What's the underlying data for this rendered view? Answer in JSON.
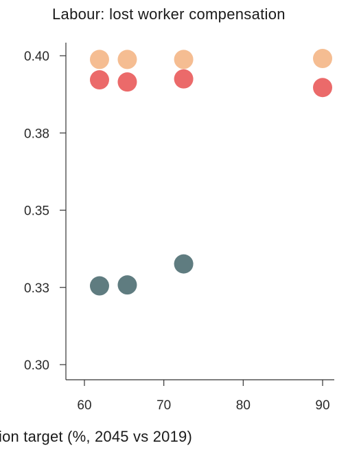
{
  "chart_data": {
    "type": "scatter",
    "title": "Labour: lost worker compensation",
    "xlabel": "ion target (%, 2045 vs 2019)",
    "ylabel": "",
    "xlim": [
      58,
      91.5
    ],
    "ylim": [
      0.298,
      0.404
    ],
    "x_ticks": [
      60,
      70,
      80,
      90
    ],
    "x_tick_labels": [
      "60",
      "70",
      "80",
      "90"
    ],
    "y_ticks": [
      0.3,
      0.325,
      0.35,
      0.375,
      0.4
    ],
    "y_tick_labels": [
      "0.30",
      "0.33",
      "0.35",
      "0.38",
      "0.40"
    ],
    "grid": false,
    "legend": "none",
    "series": [
      {
        "color": "#f5bd92",
        "points": [
          {
            "x": 61.9,
            "y": 0.3988
          },
          {
            "x": 65.4,
            "y": 0.3988
          },
          {
            "x": 72.5,
            "y": 0.3988
          },
          {
            "x": 90.0,
            "y": 0.3991
          }
        ]
      },
      {
        "color": "#eb6a6a",
        "points": [
          {
            "x": 61.9,
            "y": 0.3922
          },
          {
            "x": 65.4,
            "y": 0.3915
          },
          {
            "x": 72.5,
            "y": 0.3925
          },
          {
            "x": 90.0,
            "y": 0.3897
          }
        ]
      },
      {
        "color": "#5f7c80",
        "points": [
          {
            "x": 61.9,
            "y": 0.3255
          },
          {
            "x": 65.4,
            "y": 0.3258
          },
          {
            "x": 72.5,
            "y": 0.3326
          }
        ]
      }
    ]
  }
}
